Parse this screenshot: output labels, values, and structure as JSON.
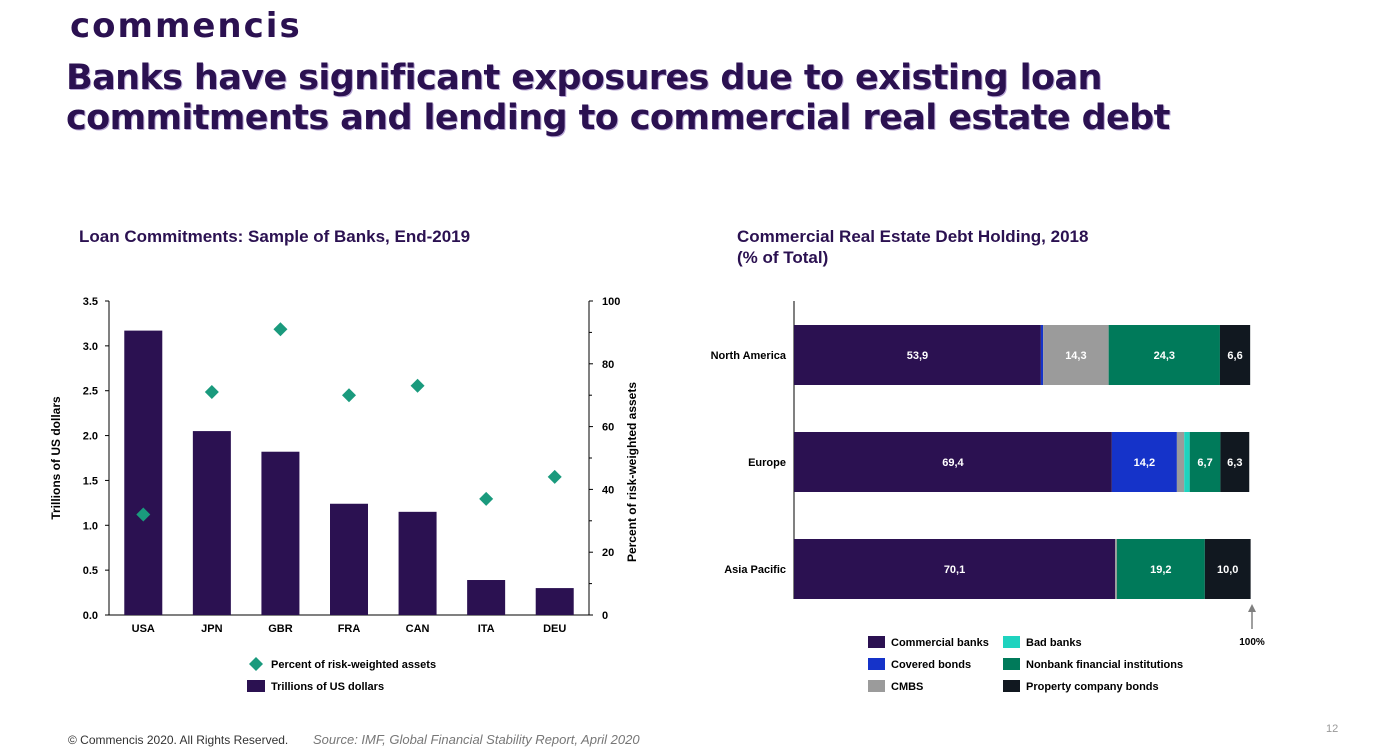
{
  "brand": "commencis",
  "headline": "Banks have significant exposures due to existing loan commitments and lending to commercial real estate debt",
  "colors": {
    "primary": "#2b1151",
    "marker": "#1a9a7d"
  },
  "chart_data": [
    {
      "type": "bar",
      "title": "Loan Commitments: Sample of Banks, End-2019",
      "categories": [
        "USA",
        "JPN",
        "GBR",
        "FRA",
        "CAN",
        "ITA",
        "DEU"
      ],
      "series": [
        {
          "name": "Trillions of US dollars",
          "kind": "bar",
          "axis": "left",
          "color": "#2b1151",
          "values": [
            3.17,
            2.05,
            1.82,
            1.24,
            1.15,
            0.39,
            0.3
          ]
        },
        {
          "name": "Percent of risk-weighted assets",
          "kind": "scatter",
          "marker": "diamond",
          "axis": "right",
          "color": "#1a9a7d",
          "values": [
            32,
            71,
            91,
            70,
            73,
            37,
            44
          ]
        }
      ],
      "ylabel": "Trillions of US dollars",
      "ylim": [
        0,
        3.5
      ],
      "yticks": [
        "0.0",
        "0.5",
        "1.0",
        "1.5",
        "2.0",
        "2.5",
        "3.0",
        "3.5"
      ],
      "y2label": "Percent of risk-weighted assets",
      "y2lim": [
        0,
        100
      ],
      "y2ticks": [
        "0",
        "20",
        "40",
        "60",
        "80",
        "100"
      ],
      "legend": [
        "Percent of risk-weighted assets",
        "Trillions of US dollars"
      ],
      "legend_position": "bottom"
    },
    {
      "type": "bar",
      "orientation": "horizontal",
      "stacked": true,
      "title": "Commercial Real Estate Debt Holding, 2018",
      "subtitle": "(% of Total)",
      "categories": [
        "North America",
        "Europe",
        "Asia Pacific"
      ],
      "series": [
        {
          "name": "Commercial banks",
          "color": "#2b1151",
          "values": [
            53.9,
            69.4,
            70.1
          ],
          "labels": [
            "53,9",
            "69,4",
            "70,1"
          ]
        },
        {
          "name": "Covered bonds",
          "color": "#1533c9",
          "values": [
            0.5,
            14.2,
            0
          ],
          "labels": [
            "",
            "14,2",
            ""
          ]
        },
        {
          "name": "CMBS",
          "color": "#9b9b9b",
          "values": [
            14.3,
            1.6,
            0.4
          ],
          "labels": [
            "14,3",
            "",
            ""
          ]
        },
        {
          "name": "Bad banks",
          "color": "#1fd3bf",
          "values": [
            0,
            1.2,
            0
          ],
          "labels": [
            "",
            "",
            ""
          ]
        },
        {
          "name": "Nonbank financial institutions",
          "color": "#007a5a",
          "values": [
            24.3,
            6.7,
            19.2
          ],
          "labels": [
            "24,3",
            "6,7",
            "19,2"
          ]
        },
        {
          "name": "Property company bonds",
          "color": "#111820",
          "values": [
            6.6,
            6.3,
            10.0
          ],
          "labels": [
            "6,6",
            "6,3",
            "10,0"
          ]
        }
      ],
      "xlim": [
        0,
        100
      ],
      "end_annotation": "100%",
      "legend_position": "bottom"
    }
  ],
  "footer": {
    "copyright": "© Commencis 2020. All Rights Reserved.",
    "source": "Source: IMF, Global Financial Stability Report, April 2020",
    "page": "12"
  }
}
